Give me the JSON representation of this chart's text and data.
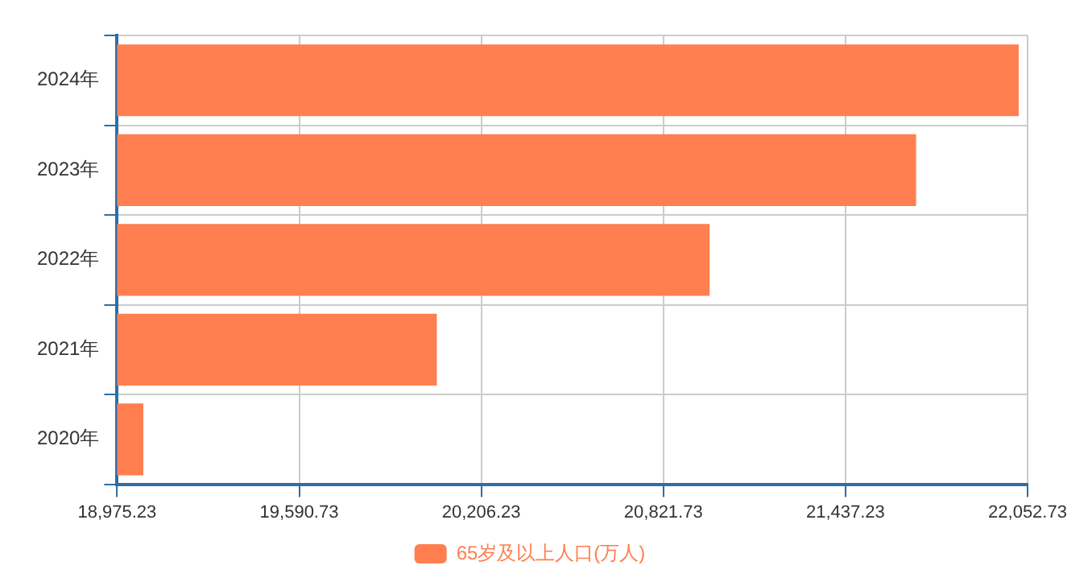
{
  "chart_data": {
    "type": "bar",
    "orientation": "horizontal",
    "categories": [
      "2024年",
      "2023年",
      "2022年",
      "2021年",
      "2020年"
    ],
    "series": [
      {
        "name": "65岁及以上人口(万人)",
        "color": "#ff7f50",
        "values": [
          22023,
          21676,
          20978,
          20056,
          19064
        ]
      }
    ],
    "xlim": [
      18975.23,
      22052.73
    ],
    "xticks": [
      {
        "value": 18975.23,
        "label": "18,975.23"
      },
      {
        "value": 19590.73,
        "label": "19,590.73"
      },
      {
        "value": 20206.23,
        "label": "20,206.23"
      },
      {
        "value": 20821.73,
        "label": "20,821.73"
      },
      {
        "value": 21437.23,
        "label": "21,437.23"
      },
      {
        "value": 22052.73,
        "label": "22,052.73"
      }
    ],
    "grid": true,
    "legend": "bottom"
  }
}
